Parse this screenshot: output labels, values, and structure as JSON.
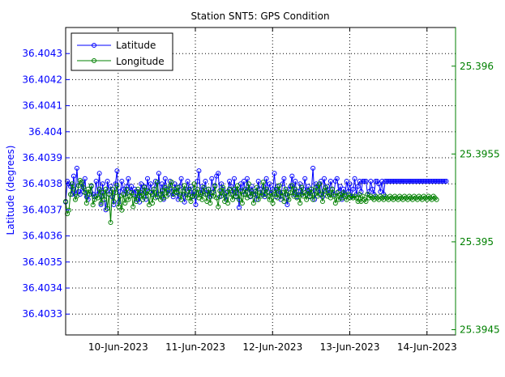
{
  "chart_data": {
    "type": "line",
    "title": "Station SNT5: GPS Condition",
    "ylabel": "Latitude (degrees)",
    "y2label": "",
    "xlabel": "",
    "x_tick_labels": [
      "10-Jun-2023",
      "11-Jun-2023",
      "12-Jun-2023",
      "13-Jun-2023",
      "14-Jun-2023"
    ],
    "x_ticks": [
      10,
      11,
      12,
      13,
      14
    ],
    "xlim": [
      9.32,
      14.37
    ],
    "ylim": [
      36.40322,
      36.4044
    ],
    "y_ticks": [
      36.4033,
      36.4034,
      36.4035,
      36.4036,
      36.4037,
      36.4038,
      36.4039,
      36.404,
      36.4041,
      36.4042,
      36.4043
    ],
    "y_tick_labels": [
      "36.4033",
      "36.4034",
      "36.4035",
      "36.4036",
      "36.4037",
      "36.4038",
      "36.4039",
      "36.404",
      "36.4041",
      "36.4042",
      "36.4043"
    ],
    "y2lim": [
      25.39447,
      25.39622
    ],
    "y2_ticks": [
      25.3945,
      25.395,
      25.3955,
      25.396
    ],
    "y2_tick_labels": [
      "25.3945",
      "25.395",
      "25.3955",
      "25.396"
    ],
    "grid": true,
    "legend_position": "top-left",
    "colors": {
      "latitude": "#0000ff",
      "longitude": "#008000",
      "axes": "#000000",
      "grid": "#000000"
    },
    "series": [
      {
        "name": "Latitude",
        "axis": "left",
        "x_start": 9.32,
        "x_step": 0.0208,
        "values": [
          36.40373,
          36.40381,
          36.4038,
          36.40379,
          36.40376,
          36.40383,
          36.40376,
          36.40386,
          36.40377,
          36.40376,
          36.4038,
          36.40377,
          36.40382,
          36.40375,
          36.40374,
          36.40376,
          36.40379,
          36.40376,
          36.40375,
          36.40381,
          36.40376,
          36.40384,
          36.40372,
          36.4038,
          36.40374,
          36.4037,
          36.40381,
          36.40376,
          36.40379,
          36.40375,
          36.40372,
          36.4038,
          36.40385,
          36.40373,
          36.40377,
          36.40381,
          36.40378,
          36.40376,
          36.40379,
          36.40382,
          36.40377,
          36.40379,
          36.40376,
          36.40378,
          36.40374,
          36.40377,
          36.40373,
          36.4038,
          36.40376,
          36.40379,
          36.40374,
          36.40382,
          36.40377,
          36.4038,
          36.40376,
          36.40378,
          36.40381,
          36.40375,
          36.40384,
          36.40376,
          36.4038,
          36.40374,
          36.40382,
          36.40378,
          36.40376,
          36.40381,
          36.40377,
          36.40375,
          36.4038,
          36.40377,
          36.40374,
          36.40379,
          36.40382,
          36.40376,
          36.40373,
          36.40378,
          36.40381,
          36.40376,
          36.40379,
          36.40375,
          36.40377,
          36.40372,
          36.40381,
          36.40385,
          36.40376,
          36.40379,
          36.40377,
          36.40381,
          36.40376,
          36.40378,
          36.40375,
          36.40382,
          36.40377,
          36.40379,
          36.40383,
          36.40384,
          36.40375,
          36.4038,
          36.40378,
          36.40376,
          36.40374,
          36.40377,
          36.40381,
          36.40379,
          36.40376,
          36.40382,
          36.40375,
          36.40378,
          36.40371,
          36.4038,
          36.40377,
          36.40381,
          36.40376,
          36.40382,
          36.40378,
          36.40375,
          36.40379,
          36.40376,
          36.40377,
          36.40374,
          36.40381,
          36.40378,
          36.40376,
          36.40379,
          36.40375,
          36.40382,
          36.40377,
          36.4038,
          36.40376,
          36.40378,
          36.40384,
          36.40375,
          36.40379,
          36.40377,
          36.40374,
          36.4038,
          36.40382,
          36.40376,
          36.40372,
          36.40378,
          36.40379,
          36.40383,
          36.40376,
          36.40381,
          36.40375,
          36.40377,
          36.4038,
          36.40376,
          36.40378,
          36.40382,
          36.40376,
          36.40379,
          36.40375,
          36.40377,
          36.40386,
          36.40374,
          36.4038,
          36.40378,
          36.40376,
          36.40381,
          36.40375,
          36.40382,
          36.40377,
          36.40379,
          36.40376,
          36.40381,
          36.40378,
          36.40376,
          36.40381,
          36.40382,
          36.40377,
          36.40379,
          36.40374,
          36.40378,
          36.40376,
          36.40381,
          36.40377,
          36.4038,
          36.40375,
          36.40378,
          36.40382,
          36.40376,
          36.40379,
          36.40381,
          36.40377,
          36.40381,
          36.40381,
          36.40381,
          36.40376,
          36.40377,
          36.40381,
          36.40378,
          36.40376,
          36.40381,
          36.40381,
          36.4038,
          36.40377,
          36.40381,
          36.40376,
          36.40381,
          36.40381,
          36.40381,
          36.40381,
          36.40381,
          36.40381,
          36.40381,
          36.40381,
          36.40381,
          36.40381,
          36.40381,
          36.40381,
          36.40381,
          36.40381,
          36.40381,
          36.40381,
          36.40381,
          36.40381,
          36.40381,
          36.40381,
          36.40381,
          36.40381,
          36.40381,
          36.40381,
          36.40381,
          36.40381,
          36.40381,
          36.40381,
          36.40381,
          36.40381,
          36.40381,
          36.40381,
          36.40381,
          36.40381,
          36.40381,
          36.40381,
          36.40381,
          36.40381,
          36.40381
        ]
      },
      {
        "name": "Longitude",
        "axis": "right",
        "x_start": 9.32,
        "x_step": 0.0208,
        "values": [
          25.39523,
          25.39516,
          25.39518,
          25.39527,
          25.39533,
          25.3953,
          25.39524,
          25.39526,
          25.39532,
          25.39535,
          25.39534,
          25.39531,
          25.39528,
          25.39522,
          25.3953,
          25.39527,
          25.39532,
          25.39521,
          25.39524,
          25.39526,
          25.39525,
          25.3953,
          25.39522,
          25.39528,
          25.39524,
          25.3953,
          25.39519,
          25.39527,
          25.39511,
          25.3953,
          25.39523,
          25.39528,
          25.39532,
          25.3952,
          25.39526,
          25.39518,
          25.39527,
          25.39522,
          25.3953,
          25.39524,
          25.39526,
          25.39528,
          25.3952,
          25.39526,
          25.39523,
          25.3953,
          25.39526,
          25.39528,
          25.39524,
          25.39531,
          25.39526,
          25.39529,
          25.39521,
          25.39528,
          25.39522,
          25.3953,
          25.39525,
          25.39534,
          25.39527,
          25.39524,
          25.39529,
          25.39525,
          25.39531,
          25.39526,
          25.39529,
          25.39532,
          25.39534,
          25.39527,
          25.3953,
          25.39528,
          25.39531,
          25.39527,
          25.39524,
          25.39529,
          25.39532,
          25.39527,
          25.39525,
          25.3953,
          25.39523,
          25.39526,
          25.39533,
          25.39526,
          25.3953,
          25.39525,
          25.39528,
          25.39524,
          25.39531,
          25.39527,
          25.39523,
          25.3953,
          25.39522,
          25.39528,
          25.39526,
          25.39532,
          25.39525,
          25.3952,
          25.39529,
          25.39526,
          25.39531,
          25.39523,
          25.39528,
          25.39522,
          25.3953,
          25.39527,
          25.39524,
          25.3953,
          25.39526,
          25.39532,
          25.39524,
          25.39529,
          25.39522,
          25.39527,
          25.3953,
          25.39525,
          25.39533,
          25.39526,
          25.39529,
          25.39522,
          25.39527,
          25.39531,
          25.39524,
          25.39528,
          25.39526,
          25.39534,
          25.39527,
          25.3953,
          25.39526,
          25.39524,
          25.39528,
          25.39522,
          25.39527,
          25.3953,
          25.39525,
          25.39532,
          25.39526,
          25.39528,
          25.39523,
          25.3953,
          25.39527,
          25.39524,
          25.39528,
          25.39532,
          25.39526,
          25.3953,
          25.39525,
          25.39527,
          25.39522,
          25.39531,
          25.39526,
          25.39528,
          25.39524,
          25.39529,
          25.39526,
          25.3953,
          25.39524,
          25.39527,
          25.39531,
          25.39526,
          25.39533,
          25.39527,
          25.39523,
          25.39529,
          25.39531,
          25.39526,
          25.39528,
          25.39525,
          25.3953,
          25.39526,
          25.39522,
          25.39528,
          25.39524,
          25.39527,
          25.39525,
          25.39528,
          25.39526,
          25.39524,
          25.39527,
          25.39525,
          25.39526,
          25.39525,
          25.39526,
          25.39525,
          25.39523,
          25.39527,
          25.39523,
          25.39526,
          25.39524,
          25.39523,
          25.39527,
          25.39525,
          25.39526,
          25.39525,
          25.39524,
          25.39526,
          25.39525,
          25.39524,
          25.39526,
          25.39525,
          25.39524,
          25.39526,
          25.39525,
          25.39524,
          25.39526,
          25.39525,
          25.39524,
          25.39526,
          25.39525,
          25.39524,
          25.39526,
          25.39525,
          25.39524,
          25.39526,
          25.39525,
          25.39524,
          25.39526,
          25.39525,
          25.39524,
          25.39526,
          25.39525,
          25.39524,
          25.39526,
          25.39525,
          25.39524,
          25.39526,
          25.39525,
          25.39524,
          25.39526,
          25.39525,
          25.39524,
          25.39526,
          25.39525,
          25.39524
        ]
      }
    ]
  }
}
